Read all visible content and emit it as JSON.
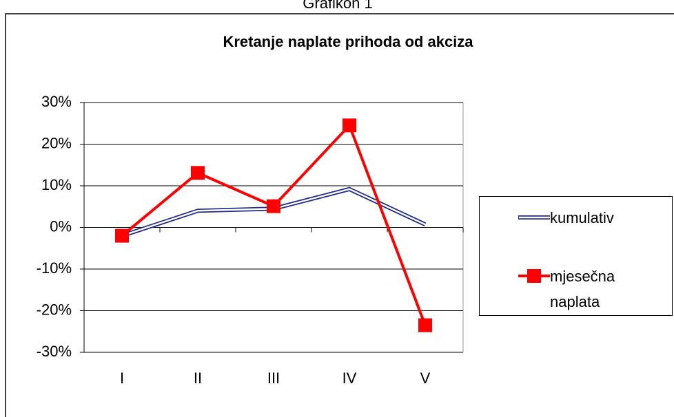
{
  "caption": "Grafikon 1",
  "chart_data": {
    "type": "line",
    "title": "Kretanje naplate prihoda od akciza",
    "categories": [
      "I",
      "II",
      "III",
      "IV",
      "V"
    ],
    "series": [
      {
        "name": "kumulativ",
        "color": "#1f2a8a",
        "values": [
          -2,
          4,
          4.5,
          9.2,
          0.7
        ],
        "style": "double"
      },
      {
        "name": "mjesečna naplata",
        "color": "#ff0000",
        "values": [
          -2,
          13.1,
          5.1,
          24.5,
          -23.5
        ],
        "marker": "square"
      }
    ],
    "ylim": [
      -30,
      30
    ],
    "yticks": [
      {
        "value": -30,
        "label": "-30%"
      },
      {
        "value": -20,
        "label": "-20%"
      },
      {
        "value": -10,
        "label": "-10%"
      },
      {
        "value": 0,
        "label": "0%"
      },
      {
        "value": 10,
        "label": "10%"
      },
      {
        "value": 20,
        "label": "20%"
      },
      {
        "value": 30,
        "label": "30%"
      }
    ],
    "grid": true,
    "legend": "right"
  }
}
